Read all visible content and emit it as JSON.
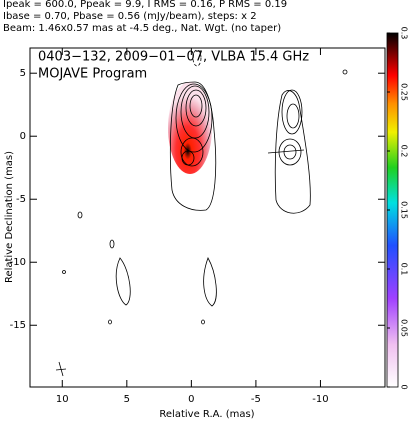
{
  "chart_data": {
    "type": "contour",
    "header": [
      "Ipeak = 600.0, Ppeak = 9.9, I RMS = 0.16, P RMS = 0.19",
      "Ibase = 0.70, Pbase = 0.56 (mJy/beam), steps: x 2",
      "Beam: 1.46x0.57 mas at -4.5 deg., Nat. Wgt. (no taper)"
    ],
    "annotations": [
      "0403−132, 2009−01−07, VLBA 15.4 GHz",
      "MOJAVE Program"
    ],
    "x_label": "Relative R.A. (mas)",
    "y_label": "Relative Declination (mas)",
    "xlim": [
      12.5,
      -15
    ],
    "ylim": [
      -19.9,
      7
    ],
    "xticks": [
      10,
      5,
      0,
      -5,
      -10
    ],
    "yticks": [
      5,
      0,
      -5,
      -10,
      -15
    ],
    "colorbar": {
      "lim": [
        0,
        0.3
      ],
      "ticks": [
        0,
        0.05,
        0.1,
        0.15,
        0.2,
        0.25,
        0.3
      ]
    }
  }
}
